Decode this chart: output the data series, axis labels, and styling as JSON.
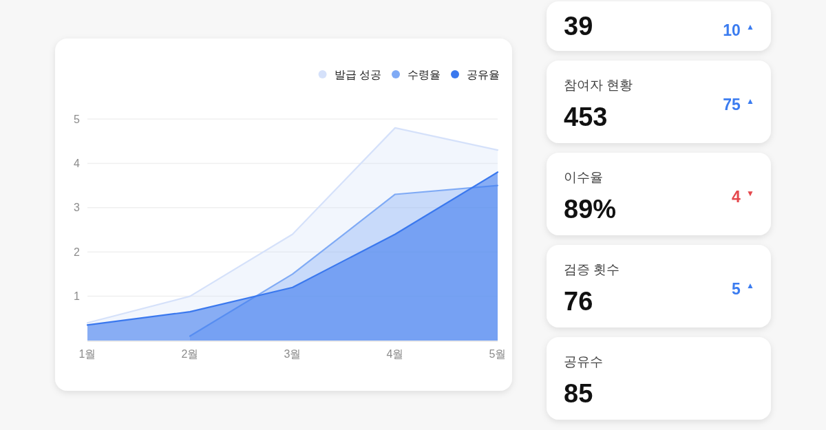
{
  "chart_data": [
    {
      "type": "area",
      "categories": [
        "1월",
        "2월",
        "3월",
        "4월",
        "5월"
      ],
      "series": [
        {
          "name": "발급 성공",
          "color": "#d5e1fa",
          "values": [
            0.4,
            1.0,
            2.4,
            4.8,
            4.3
          ]
        },
        {
          "name": "수령율",
          "color": "#7faaf5",
          "values": [
            null,
            0.1,
            1.5,
            3.3,
            3.5
          ]
        },
        {
          "name": "공유율",
          "color": "#3a78ee",
          "values": [
            0.35,
            0.65,
            1.2,
            2.4,
            3.8
          ]
        }
      ],
      "ylim": [
        0,
        5
      ],
      "yticks": [
        1,
        2,
        3,
        4,
        5
      ],
      "grid": "y",
      "legend": "top right"
    },
    {
      "type": "other",
      "annotations": [
        "39",
        "10 $^{▲}$"
      ]
    },
    {
      "type": "other",
      "categories": [
        "참여자 현황",
        "이수율",
        "검증 횟수",
        "공유수"
      ],
      "series": [
        {
          "values": [
            453,
            89,
            76,
            85
          ],
          "value_labels": [
            "453",
            "89%",
            "76",
            "85"
          ]
        },
        {
          "values": [
            75,
            4,
            5,
            null
          ],
          "value_labels": [
            "75 $^{▲}$",
            "4 $^{▼}$",
            "5 $^{▲}$",
            null
          ],
          "colors": [
            "#3b7cf0",
            "#e5484d",
            "#3b7cf0",
            null
          ]
        }
      ]
    }
  ]
}
